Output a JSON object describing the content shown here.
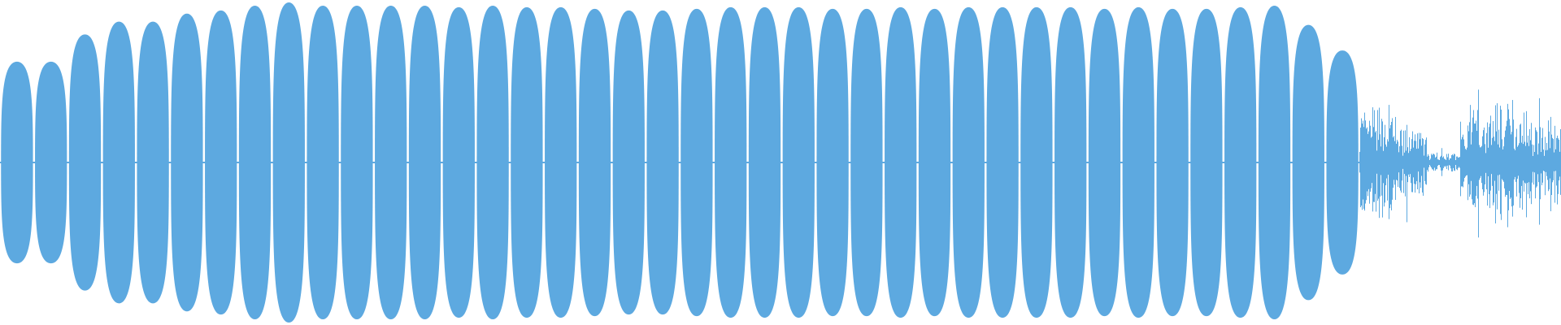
{
  "waveform": {
    "color": "#5DA9E0",
    "lobes": [
      {
        "amplitude": 0.63
      },
      {
        "amplitude": 0.63
      },
      {
        "amplitude": 0.8
      },
      {
        "amplitude": 0.88
      },
      {
        "amplitude": 0.88
      },
      {
        "amplitude": 0.93
      },
      {
        "amplitude": 0.95
      },
      {
        "amplitude": 0.98
      },
      {
        "amplitude": 1.0
      },
      {
        "amplitude": 0.98
      },
      {
        "amplitude": 0.98
      },
      {
        "amplitude": 0.98
      },
      {
        "amplitude": 0.98
      },
      {
        "amplitude": 0.97
      },
      {
        "amplitude": 0.98
      },
      {
        "amplitude": 0.97
      },
      {
        "amplitude": 0.97
      },
      {
        "amplitude": 0.96
      },
      {
        "amplitude": 0.95
      },
      {
        "amplitude": 0.95
      },
      {
        "amplitude": 0.96
      },
      {
        "amplitude": 0.97
      },
      {
        "amplitude": 0.97
      },
      {
        "amplitude": 0.97
      },
      {
        "amplitude": 0.96
      },
      {
        "amplitude": 0.96
      },
      {
        "amplitude": 0.97
      },
      {
        "amplitude": 0.96
      },
      {
        "amplitude": 0.97
      },
      {
        "amplitude": 0.97
      },
      {
        "amplitude": 0.97
      },
      {
        "amplitude": 0.97
      },
      {
        "amplitude": 0.96
      },
      {
        "amplitude": 0.97
      },
      {
        "amplitude": 0.96
      },
      {
        "amplitude": 0.96
      },
      {
        "amplitude": 0.97
      },
      {
        "amplitude": 0.98
      },
      {
        "amplitude": 0.86
      },
      {
        "amplitude": 0.7
      }
    ],
    "noise": {
      "seed": 7,
      "segments": [
        {
          "level": 0.3
        },
        {
          "level": 0.18
        },
        {
          "level": 0.05
        },
        {
          "level": 0.28
        },
        {
          "level": 0.32
        },
        {
          "level": 0.22
        }
      ]
    }
  }
}
